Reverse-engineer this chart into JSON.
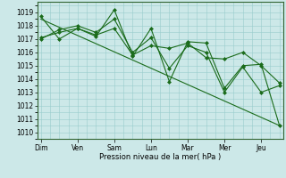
{
  "background_color": "#cce8e8",
  "grid_color": "#99cccc",
  "line_color": "#1a6b1a",
  "marker_color": "#1a6b1a",
  "xlabel": "Pression niveau de la mer( hPa )",
  "ylim": [
    1009.5,
    1019.8
  ],
  "yticks": [
    1010,
    1011,
    1012,
    1013,
    1014,
    1015,
    1016,
    1017,
    1018,
    1019
  ],
  "day_labels": [
    "Dim",
    "Ven",
    "Sam",
    "Lun",
    "Mar",
    "Mer",
    "Jeu"
  ],
  "day_positions": [
    0,
    1,
    2,
    3,
    4,
    5,
    6
  ],
  "series": [
    {
      "x": [
        0.0,
        0.5,
        1.0,
        1.5,
        2.0,
        2.5,
        3.0,
        3.5,
        4.0,
        4.5,
        5.0,
        5.5,
        6.0,
        6.5
      ],
      "y": [
        1018.7,
        1017.0,
        1017.8,
        1017.2,
        1019.2,
        1015.7,
        1017.8,
        1013.8,
        1016.8,
        1016.7,
        1013.3,
        1015.0,
        1015.1,
        1010.5
      ],
      "is_trend": false
    },
    {
      "x": [
        0.0,
        0.5,
        1.0,
        1.5,
        2.0,
        2.5,
        3.0,
        3.5,
        4.0,
        4.5,
        5.0,
        5.5,
        6.0,
        6.5
      ],
      "y": [
        1017.0,
        1017.7,
        1018.0,
        1017.5,
        1018.5,
        1016.0,
        1017.1,
        1014.8,
        1016.5,
        1016.0,
        1013.0,
        1014.9,
        1013.0,
        1013.5
      ],
      "is_trend": false
    },
    {
      "x": [
        0.0,
        0.5,
        1.0,
        1.5,
        2.0,
        2.5,
        3.0,
        3.5,
        4.0,
        4.5,
        5.0,
        5.5,
        6.0,
        6.5
      ],
      "y": [
        1017.1,
        1017.5,
        1017.8,
        1017.3,
        1017.8,
        1015.8,
        1016.5,
        1016.3,
        1016.7,
        1015.6,
        1015.5,
        1016.0,
        1015.0,
        1013.7
      ],
      "is_trend": false
    },
    {
      "x": [
        0.0,
        6.5
      ],
      "y": [
        1018.5,
        1010.5
      ],
      "is_trend": true
    }
  ]
}
